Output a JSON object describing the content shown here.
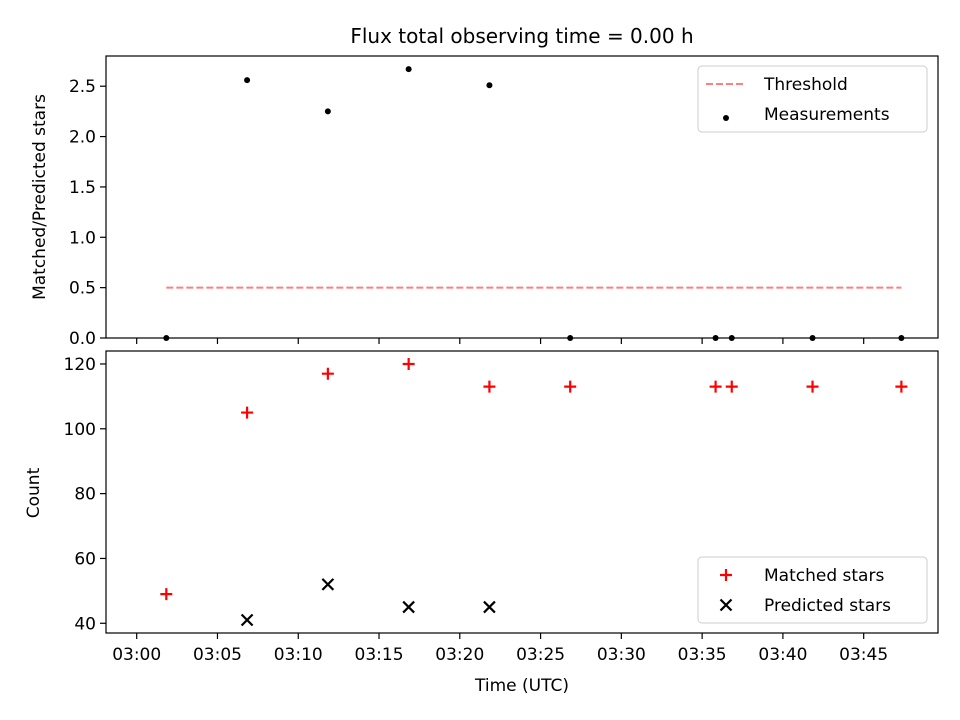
{
  "chart_data": {
    "type": "scatter",
    "title": "Flux total observing time = 0.00 h",
    "xlabel": "Time (UTC)",
    "x_tick_labels": [
      "03:00",
      "03:05",
      "03:10",
      "03:15",
      "03:20",
      "03:25",
      "03:30",
      "03:35",
      "03:40",
      "03:45"
    ],
    "x_ticks_minutes": [
      0,
      5,
      10,
      15,
      20,
      25,
      30,
      35,
      40,
      45
    ],
    "xlim_minutes": [
      -1.9,
      49.6
    ],
    "colors": {
      "threshold": "#ff7f7f",
      "measurements": "#000000",
      "matched": "#ff0000",
      "predicted": "#000000"
    },
    "panels": [
      {
        "id": "ratio",
        "ylabel": "Matched/Predicted stars",
        "ylim": [
          0,
          2.8
        ],
        "y_ticks": [
          0.0,
          0.5,
          1.0,
          1.5,
          2.0,
          2.5
        ],
        "y_tick_labels": [
          "0.0",
          "0.5",
          "1.0",
          "1.5",
          "2.0",
          "2.5"
        ],
        "legend_position": "upper right",
        "series": [
          {
            "name": "Threshold",
            "kind": "dashed-line",
            "color": "#ff7f7f",
            "x": [
              "03:01:50",
              "03:47:20"
            ],
            "y": [
              0.5,
              0.5
            ]
          },
          {
            "name": "Measurements",
            "kind": "dot",
            "color": "#000000",
            "x": [
              "03:01:50",
              "03:06:50",
              "03:11:50",
              "03:16:50",
              "03:21:50",
              "03:26:50",
              "03:35:50",
              "03:36:50",
              "03:41:50",
              "03:47:20"
            ],
            "y": [
              0.0,
              2.56,
              2.25,
              2.67,
              2.51,
              0.0,
              0.0,
              0.0,
              0.0,
              0.0
            ]
          }
        ]
      },
      {
        "id": "count",
        "ylabel": "Count",
        "ylim": [
          37,
          124
        ],
        "y_ticks": [
          40,
          60,
          80,
          100,
          120
        ],
        "y_tick_labels": [
          "40",
          "60",
          "80",
          "100",
          "120"
        ],
        "legend_position": "lower right",
        "series": [
          {
            "name": "Matched stars",
            "kind": "plus",
            "color": "#ff0000",
            "x": [
              "03:01:50",
              "03:06:50",
              "03:11:50",
              "03:16:50",
              "03:21:50",
              "03:26:50",
              "03:35:50",
              "03:36:50",
              "03:41:50",
              "03:47:20"
            ],
            "y": [
              49,
              105,
              117,
              120,
              113,
              113,
              113,
              113,
              113,
              113
            ]
          },
          {
            "name": "Predicted stars",
            "kind": "x",
            "color": "#000000",
            "x": [
              "03:06:50",
              "03:11:50",
              "03:16:50",
              "03:21:50"
            ],
            "y": [
              41,
              52,
              45,
              45
            ]
          }
        ]
      }
    ]
  }
}
